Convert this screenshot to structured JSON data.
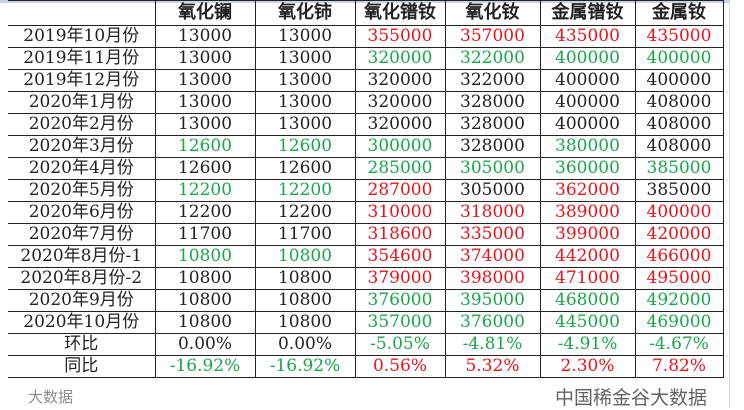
{
  "colors": {
    "up": "#e8141c",
    "down": "#1aa64a",
    "neutral": "#222222"
  },
  "headers": [
    "",
    "氧化镧",
    "氧化铈",
    "氧化镨钕",
    "氧化钕",
    "金属镨钕",
    "金属钕"
  ],
  "rows": [
    {
      "label": "2019年10月份",
      "cells": [
        [
          "13000",
          "k"
        ],
        [
          "13000",
          "k"
        ],
        [
          "355000",
          "r"
        ],
        [
          "357000",
          "r"
        ],
        [
          "435000",
          "r"
        ],
        [
          "435000",
          "r"
        ]
      ]
    },
    {
      "label": "2019年11月份",
      "cells": [
        [
          "13000",
          "k"
        ],
        [
          "13000",
          "k"
        ],
        [
          "320000",
          "g"
        ],
        [
          "322000",
          "g"
        ],
        [
          "400000",
          "g"
        ],
        [
          "400000",
          "g"
        ]
      ]
    },
    {
      "label": "2019年12月份",
      "cells": [
        [
          "13000",
          "k"
        ],
        [
          "13000",
          "k"
        ],
        [
          "320000",
          "k"
        ],
        [
          "322000",
          "k"
        ],
        [
          "400000",
          "k"
        ],
        [
          "400000",
          "k"
        ]
      ]
    },
    {
      "label": "2020年1月份",
      "cells": [
        [
          "13000",
          "k"
        ],
        [
          "13000",
          "k"
        ],
        [
          "320000",
          "k"
        ],
        [
          "328000",
          "k"
        ],
        [
          "400000",
          "k"
        ],
        [
          "408000",
          "k"
        ]
      ]
    },
    {
      "label": "2020年2月份",
      "cells": [
        [
          "13000",
          "k"
        ],
        [
          "13000",
          "k"
        ],
        [
          "320000",
          "k"
        ],
        [
          "328000",
          "k"
        ],
        [
          "400000",
          "k"
        ],
        [
          "408000",
          "k"
        ]
      ]
    },
    {
      "label": "2020年3月份",
      "cells": [
        [
          "12600",
          "g"
        ],
        [
          "12600",
          "g"
        ],
        [
          "300000",
          "g"
        ],
        [
          "328000",
          "k"
        ],
        [
          "380000",
          "g"
        ],
        [
          "408000",
          "k"
        ]
      ]
    },
    {
      "label": "2020年4月份",
      "cells": [
        [
          "12600",
          "k"
        ],
        [
          "12600",
          "k"
        ],
        [
          "285000",
          "g"
        ],
        [
          "305000",
          "g"
        ],
        [
          "360000",
          "g"
        ],
        [
          "385000",
          "g"
        ]
      ]
    },
    {
      "label": "2020年5月份",
      "cells": [
        [
          "12200",
          "g"
        ],
        [
          "12200",
          "g"
        ],
        [
          "287000",
          "r"
        ],
        [
          "305000",
          "k"
        ],
        [
          "362000",
          "r"
        ],
        [
          "385000",
          "k"
        ]
      ]
    },
    {
      "label": "2020年6月份",
      "cells": [
        [
          "12200",
          "k"
        ],
        [
          "12200",
          "k"
        ],
        [
          "310000",
          "r"
        ],
        [
          "318000",
          "r"
        ],
        [
          "389000",
          "r"
        ],
        [
          "400000",
          "r"
        ]
      ]
    },
    {
      "label": "2020年7月份",
      "cells": [
        [
          "11700",
          "k"
        ],
        [
          "11700",
          "k"
        ],
        [
          "318600",
          "r"
        ],
        [
          "335000",
          "r"
        ],
        [
          "399000",
          "r"
        ],
        [
          "420000",
          "r"
        ]
      ]
    },
    {
      "label": "2020年8月份-1",
      "cells": [
        [
          "10800",
          "g"
        ],
        [
          "10800",
          "g"
        ],
        [
          "354600",
          "r"
        ],
        [
          "374000",
          "r"
        ],
        [
          "442000",
          "r"
        ],
        [
          "466000",
          "r"
        ]
      ]
    },
    {
      "label": "2020年8月份-2",
      "cells": [
        [
          "10800",
          "k"
        ],
        [
          "10800",
          "k"
        ],
        [
          "379000",
          "r"
        ],
        [
          "398000",
          "r"
        ],
        [
          "471000",
          "r"
        ],
        [
          "495000",
          "r"
        ]
      ]
    },
    {
      "label": "2020年9月份",
      "cells": [
        [
          "10800",
          "k"
        ],
        [
          "10800",
          "k"
        ],
        [
          "376000",
          "g"
        ],
        [
          "395000",
          "g"
        ],
        [
          "468000",
          "g"
        ],
        [
          "492000",
          "g"
        ]
      ]
    },
    {
      "label": "2020年10月份",
      "cells": [
        [
          "10800",
          "k"
        ],
        [
          "10800",
          "k"
        ],
        [
          "357000",
          "g"
        ],
        [
          "376000",
          "g"
        ],
        [
          "445000",
          "g"
        ],
        [
          "469000",
          "g"
        ]
      ]
    },
    {
      "label": "环比",
      "cells": [
        [
          "0.00%",
          "k"
        ],
        [
          "0.00%",
          "k"
        ],
        [
          "-5.05%",
          "g"
        ],
        [
          "-4.81%",
          "g"
        ],
        [
          "-4.91%",
          "g"
        ],
        [
          "-4.67%",
          "g"
        ]
      ]
    },
    {
      "label": "同比",
      "cells": [
        [
          "-16.92%",
          "g"
        ],
        [
          "-16.92%",
          "g"
        ],
        [
          "0.56%",
          "r"
        ],
        [
          "5.32%",
          "r"
        ],
        [
          "2.30%",
          "r"
        ],
        [
          "7.82%",
          "r"
        ]
      ]
    }
  ],
  "watermark": {
    "right": "中国稀金谷大数据",
    "left": "大数据"
  }
}
